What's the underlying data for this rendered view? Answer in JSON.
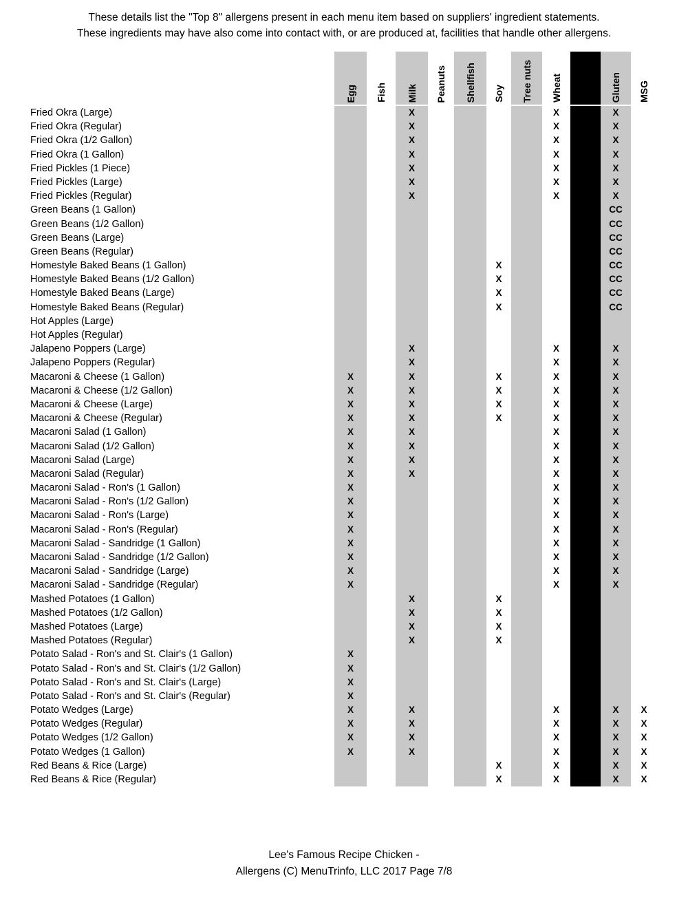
{
  "intro": {
    "line1": "These details list the \"Top 8\" allergens present in each menu item based on suppliers' ingredient statements.",
    "line2": "These ingredients may have also come into contact with, or are produced at, facilities that handle other allergens."
  },
  "colors": {
    "column_shade_gray": "#c8c8c8",
    "column_shade_black": "#000000",
    "text": "#000000",
    "background": "#ffffff"
  },
  "marks_legend": {
    "contains": "X",
    "cross_contact": "CC"
  },
  "table": {
    "columns": [
      {
        "key": "egg",
        "label": "Egg",
        "shade": "gray"
      },
      {
        "key": "fish",
        "label": "Fish",
        "shade": "white"
      },
      {
        "key": "milk",
        "label": "Milk",
        "shade": "gray"
      },
      {
        "key": "peanuts",
        "label": "Peanuts",
        "shade": "white"
      },
      {
        "key": "shellfish",
        "label": "Shellfish",
        "shade": "gray"
      },
      {
        "key": "soy",
        "label": "Soy",
        "shade": "white"
      },
      {
        "key": "tree-nuts",
        "label": "Tree nuts",
        "shade": "gray"
      },
      {
        "key": "wheat",
        "label": "Wheat",
        "shade": "white"
      },
      {
        "key": "divider",
        "label": "",
        "shade": "black"
      },
      {
        "key": "gluten",
        "label": "Gluten",
        "shade": "gray"
      },
      {
        "key": "msg",
        "label": "MSG",
        "shade": "white"
      }
    ],
    "rows": [
      {
        "label": "Fried Okra (Large)",
        "marks": [
          "",
          "",
          "X",
          "",
          "",
          "",
          "",
          "X",
          "",
          "X",
          ""
        ]
      },
      {
        "label": "Fried Okra (Regular)",
        "marks": [
          "",
          "",
          "X",
          "",
          "",
          "",
          "",
          "X",
          "",
          "X",
          ""
        ]
      },
      {
        "label": "Fried Okra (1/2 Gallon)",
        "marks": [
          "",
          "",
          "X",
          "",
          "",
          "",
          "",
          "X",
          "",
          "X",
          ""
        ]
      },
      {
        "label": "Fried Okra (1 Gallon)",
        "marks": [
          "",
          "",
          "X",
          "",
          "",
          "",
          "",
          "X",
          "",
          "X",
          ""
        ]
      },
      {
        "label": "Fried Pickles (1 Piece)",
        "marks": [
          "",
          "",
          "X",
          "",
          "",
          "",
          "",
          "X",
          "",
          "X",
          ""
        ]
      },
      {
        "label": "Fried Pickles (Large)",
        "marks": [
          "",
          "",
          "X",
          "",
          "",
          "",
          "",
          "X",
          "",
          "X",
          ""
        ]
      },
      {
        "label": "Fried Pickles (Regular)",
        "marks": [
          "",
          "",
          "X",
          "",
          "",
          "",
          "",
          "X",
          "",
          "X",
          ""
        ]
      },
      {
        "label": "Green Beans (1 Gallon)",
        "marks": [
          "",
          "",
          "",
          "",
          "",
          "",
          "",
          "",
          "",
          "CC",
          ""
        ]
      },
      {
        "label": "Green Beans (1/2 Gallon)",
        "marks": [
          "",
          "",
          "",
          "",
          "",
          "",
          "",
          "",
          "",
          "CC",
          ""
        ]
      },
      {
        "label": "Green Beans (Large)",
        "marks": [
          "",
          "",
          "",
          "",
          "",
          "",
          "",
          "",
          "",
          "CC",
          ""
        ]
      },
      {
        "label": "Green Beans (Regular)",
        "marks": [
          "",
          "",
          "",
          "",
          "",
          "",
          "",
          "",
          "",
          "CC",
          ""
        ]
      },
      {
        "label": "Homestyle Baked Beans (1 Gallon)",
        "marks": [
          "",
          "",
          "",
          "",
          "",
          "X",
          "",
          "",
          "",
          "CC",
          ""
        ]
      },
      {
        "label": "Homestyle Baked Beans (1/2 Gallon)",
        "marks": [
          "",
          "",
          "",
          "",
          "",
          "X",
          "",
          "",
          "",
          "CC",
          ""
        ]
      },
      {
        "label": "Homestyle Baked Beans (Large)",
        "marks": [
          "",
          "",
          "",
          "",
          "",
          "X",
          "",
          "",
          "",
          "CC",
          ""
        ]
      },
      {
        "label": "Homestyle Baked Beans (Regular)",
        "marks": [
          "",
          "",
          "",
          "",
          "",
          "X",
          "",
          "",
          "",
          "CC",
          ""
        ]
      },
      {
        "label": "Hot Apples (Large)",
        "marks": [
          "",
          "",
          "",
          "",
          "",
          "",
          "",
          "",
          "",
          "",
          ""
        ]
      },
      {
        "label": "Hot Apples (Regular)",
        "marks": [
          "",
          "",
          "",
          "",
          "",
          "",
          "",
          "",
          "",
          "",
          ""
        ]
      },
      {
        "label": "Jalapeno Poppers (Large)",
        "marks": [
          "",
          "",
          "X",
          "",
          "",
          "",
          "",
          "X",
          "",
          "X",
          ""
        ]
      },
      {
        "label": "Jalapeno Poppers (Regular)",
        "marks": [
          "",
          "",
          "X",
          "",
          "",
          "",
          "",
          "X",
          "",
          "X",
          ""
        ]
      },
      {
        "label": "Macaroni & Cheese (1 Gallon)",
        "marks": [
          "X",
          "",
          "X",
          "",
          "",
          "X",
          "",
          "X",
          "",
          "X",
          ""
        ]
      },
      {
        "label": "Macaroni & Cheese (1/2 Gallon)",
        "marks": [
          "X",
          "",
          "X",
          "",
          "",
          "X",
          "",
          "X",
          "",
          "X",
          ""
        ]
      },
      {
        "label": "Macaroni & Cheese (Large)",
        "marks": [
          "X",
          "",
          "X",
          "",
          "",
          "X",
          "",
          "X",
          "",
          "X",
          ""
        ]
      },
      {
        "label": "Macaroni & Cheese (Regular)",
        "marks": [
          "X",
          "",
          "X",
          "",
          "",
          "X",
          "",
          "X",
          "",
          "X",
          ""
        ]
      },
      {
        "label": "Macaroni Salad (1 Gallon)",
        "marks": [
          "X",
          "",
          "X",
          "",
          "",
          "",
          "",
          "X",
          "",
          "X",
          ""
        ]
      },
      {
        "label": "Macaroni Salad (1/2 Gallon)",
        "marks": [
          "X",
          "",
          "X",
          "",
          "",
          "",
          "",
          "X",
          "",
          "X",
          ""
        ]
      },
      {
        "label": "Macaroni Salad (Large)",
        "marks": [
          "X",
          "",
          "X",
          "",
          "",
          "",
          "",
          "X",
          "",
          "X",
          ""
        ]
      },
      {
        "label": "Macaroni Salad (Regular)",
        "marks": [
          "X",
          "",
          "X",
          "",
          "",
          "",
          "",
          "X",
          "",
          "X",
          ""
        ]
      },
      {
        "label": "Macaroni Salad - Ron's (1 Gallon)",
        "marks": [
          "X",
          "",
          "",
          "",
          "",
          "",
          "",
          "X",
          "",
          "X",
          ""
        ]
      },
      {
        "label": "Macaroni Salad - Ron's (1/2 Gallon)",
        "marks": [
          "X",
          "",
          "",
          "",
          "",
          "",
          "",
          "X",
          "",
          "X",
          ""
        ]
      },
      {
        "label": "Macaroni Salad - Ron's (Large)",
        "marks": [
          "X",
          "",
          "",
          "",
          "",
          "",
          "",
          "X",
          "",
          "X",
          ""
        ]
      },
      {
        "label": "Macaroni Salad - Ron's (Regular)",
        "marks": [
          "X",
          "",
          "",
          "",
          "",
          "",
          "",
          "X",
          "",
          "X",
          ""
        ]
      },
      {
        "label": "Macaroni Salad - Sandridge (1 Gallon)",
        "marks": [
          "X",
          "",
          "",
          "",
          "",
          "",
          "",
          "X",
          "",
          "X",
          ""
        ]
      },
      {
        "label": "Macaroni Salad - Sandridge (1/2 Gallon)",
        "marks": [
          "X",
          "",
          "",
          "",
          "",
          "",
          "",
          "X",
          "",
          "X",
          ""
        ]
      },
      {
        "label": "Macaroni Salad - Sandridge (Large)",
        "marks": [
          "X",
          "",
          "",
          "",
          "",
          "",
          "",
          "X",
          "",
          "X",
          ""
        ]
      },
      {
        "label": "Macaroni Salad - Sandridge (Regular)",
        "marks": [
          "X",
          "",
          "",
          "",
          "",
          "",
          "",
          "X",
          "",
          "X",
          ""
        ]
      },
      {
        "label": "Mashed Potatoes (1 Gallon)",
        "marks": [
          "",
          "",
          "X",
          "",
          "",
          "X",
          "",
          "",
          "",
          "",
          ""
        ]
      },
      {
        "label": "Mashed Potatoes (1/2 Gallon)",
        "marks": [
          "",
          "",
          "X",
          "",
          "",
          "X",
          "",
          "",
          "",
          "",
          ""
        ]
      },
      {
        "label": "Mashed Potatoes (Large)",
        "marks": [
          "",
          "",
          "X",
          "",
          "",
          "X",
          "",
          "",
          "",
          "",
          ""
        ]
      },
      {
        "label": "Mashed Potatoes (Regular)",
        "marks": [
          "",
          "",
          "X",
          "",
          "",
          "X",
          "",
          "",
          "",
          "",
          ""
        ]
      },
      {
        "label": "Potato Salad - Ron's and St. Clair's (1 Gallon)",
        "marks": [
          "X",
          "",
          "",
          "",
          "",
          "",
          "",
          "",
          "",
          "",
          ""
        ]
      },
      {
        "label": "Potato Salad - Ron's and St. Clair's (1/2 Gallon)",
        "marks": [
          "X",
          "",
          "",
          "",
          "",
          "",
          "",
          "",
          "",
          "",
          ""
        ]
      },
      {
        "label": "Potato Salad - Ron's and St. Clair's (Large)",
        "marks": [
          "X",
          "",
          "",
          "",
          "",
          "",
          "",
          "",
          "",
          "",
          ""
        ]
      },
      {
        "label": "Potato Salad - Ron's and St. Clair's (Regular)",
        "marks": [
          "X",
          "",
          "",
          "",
          "",
          "",
          "",
          "",
          "",
          "",
          ""
        ]
      },
      {
        "label": "Potato Wedges (Large)",
        "marks": [
          "X",
          "",
          "X",
          "",
          "",
          "",
          "",
          "X",
          "",
          "X",
          "X"
        ]
      },
      {
        "label": "Potato Wedges (Regular)",
        "marks": [
          "X",
          "",
          "X",
          "",
          "",
          "",
          "",
          "X",
          "",
          "X",
          "X"
        ]
      },
      {
        "label": "Potato Wedges (1/2 Gallon)",
        "marks": [
          "X",
          "",
          "X",
          "",
          "",
          "",
          "",
          "X",
          "",
          "X",
          "X"
        ]
      },
      {
        "label": "Potato Wedges (1 Gallon)",
        "marks": [
          "X",
          "",
          "X",
          "",
          "",
          "",
          "",
          "X",
          "",
          "X",
          "X"
        ]
      },
      {
        "label": "Red Beans & Rice (Large)",
        "marks": [
          "",
          "",
          "",
          "",
          "",
          "X",
          "",
          "X",
          "",
          "X",
          "X"
        ]
      },
      {
        "label": "Red Beans & Rice (Regular)",
        "marks": [
          "",
          "",
          "",
          "",
          "",
          "X",
          "",
          "X",
          "",
          "X",
          "X"
        ]
      }
    ]
  },
  "footer": {
    "line1": "Lee's Famous Recipe Chicken -",
    "line2": "Allergens (C) MenuTrinfo, LLC 2017 Page 7/8"
  }
}
